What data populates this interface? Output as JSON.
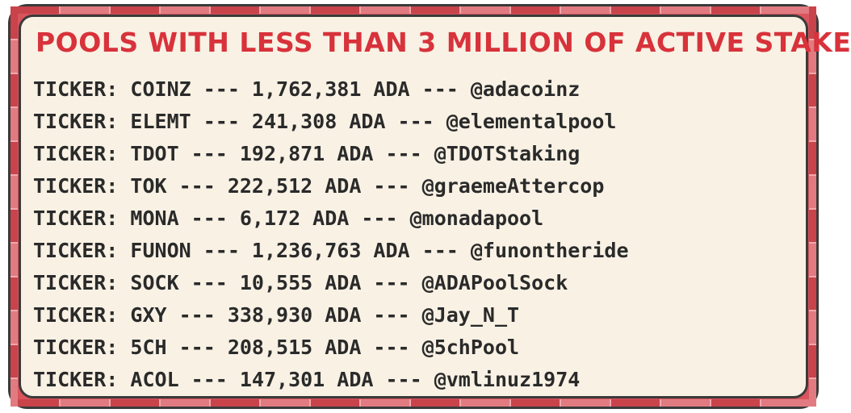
{
  "title": "POOLS WITH LESS THAN 3 MILLION OF ACTIVE STAKE",
  "colors": {
    "title": "#d8323b",
    "panel_background": "#f8f1e4",
    "frame_red": "#d9545c",
    "text": "#2a2a2a",
    "outline": "#3a3a3a"
  },
  "pools": [
    {
      "line": "TICKER: COINZ --- 1,762,381 ADA --- @adacoinz"
    },
    {
      "line": "TICKER: ELEMT --- 241,308 ADA --- @elementalpool"
    },
    {
      "line": "TICKER: TDOT --- 192,871 ADA --- @TDOTStaking"
    },
    {
      "line": "TICKER: TOK --- 222,512 ADA --- @graemeAttercop"
    },
    {
      "line": "TICKER: MONA --- 6,172 ADA --- @monadapool"
    },
    {
      "line": "TICKER: FUNON --- 1,236,763 ADA --- @funontheride"
    },
    {
      "line": "TICKER: SOCK --- 10,555 ADA --- @ADAPoolSock"
    },
    {
      "line": "TICKER: GXY --- 338,930 ADA --- @Jay_N_T"
    },
    {
      "line": "TICKER: 5CH --- 208,515 ADA --- @5chPool"
    },
    {
      "line": "TICKER: ACOL --- 147,301 ADA --- @vmlinuz1974"
    }
  ]
}
